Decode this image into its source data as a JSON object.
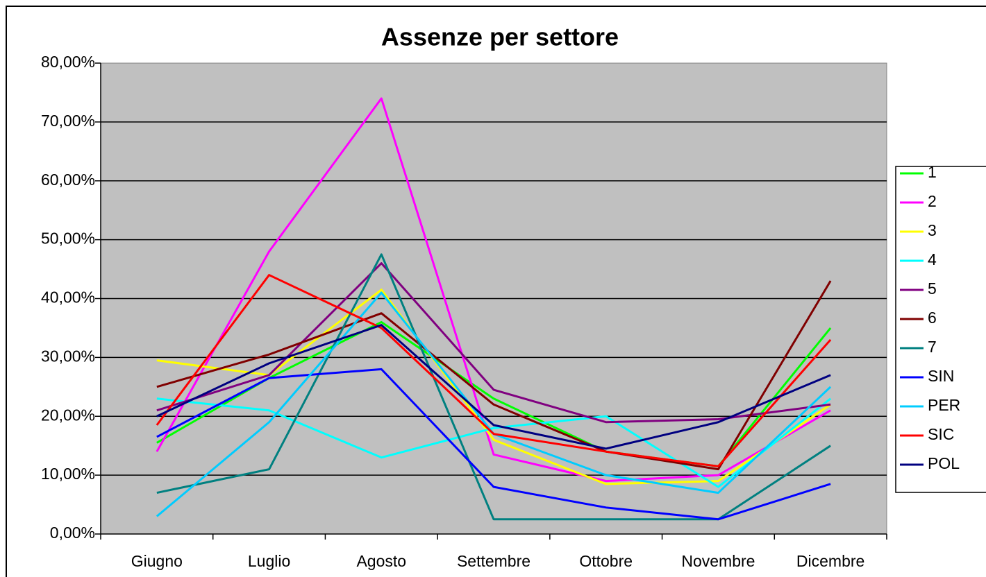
{
  "chart_data": {
    "type": "line",
    "title": "Assenze per settore",
    "categories": [
      "Giugno",
      "Luglio",
      "Agosto",
      "Settembre",
      "Ottobre",
      "Novembre",
      "Dicembre"
    ],
    "series": [
      {
        "name": "1",
        "color": "#00ff00",
        "values": [
          15.5,
          26.5,
          36,
          23,
          14,
          11.5,
          35
        ]
      },
      {
        "name": "2",
        "color": "#ff00ff",
        "values": [
          14,
          48,
          74,
          13.5,
          9,
          10,
          21
        ]
      },
      {
        "name": "3",
        "color": "#ffff00",
        "values": [
          29.5,
          27,
          41.5,
          16,
          8.5,
          9,
          22
        ]
      },
      {
        "name": "4",
        "color": "#00ffff",
        "values": [
          23,
          21,
          13,
          18,
          20,
          8,
          23
        ]
      },
      {
        "name": "5",
        "color": "#800080",
        "values": [
          21,
          27,
          46,
          24.5,
          19,
          19.5,
          22
        ]
      },
      {
        "name": "6",
        "color": "#800000",
        "values": [
          25,
          30.5,
          37.5,
          22,
          14,
          11,
          43
        ]
      },
      {
        "name": "7",
        "color": "#008080",
        "values": [
          7,
          11,
          47.5,
          2.5,
          2.5,
          2.5,
          15
        ]
      },
      {
        "name": "SIN",
        "color": "#0000ff",
        "values": [
          16.5,
          26.5,
          28,
          8,
          4.5,
          2.5,
          8.5
        ]
      },
      {
        "name": "PER",
        "color": "#00ccff",
        "values": [
          3,
          19,
          41,
          17,
          10,
          7,
          25
        ]
      },
      {
        "name": "SIC",
        "color": "#ff0000",
        "values": [
          18.5,
          44,
          35,
          17,
          14,
          11.5,
          33
        ]
      },
      {
        "name": "POL",
        "color": "#000080",
        "values": [
          20,
          29,
          35.5,
          18.5,
          14.5,
          19,
          27
        ]
      }
    ],
    "ylim": [
      0,
      80
    ],
    "yticks": [
      {
        "value": 0,
        "label": "0,00%"
      },
      {
        "value": 10,
        "label": "10,00%"
      },
      {
        "value": 20,
        "label": "20,00%"
      },
      {
        "value": 30,
        "label": "30,00%"
      },
      {
        "value": 40,
        "label": "40,00%"
      },
      {
        "value": 50,
        "label": "50,00%"
      },
      {
        "value": 60,
        "label": "60,00%"
      },
      {
        "value": 70,
        "label": "70,00%"
      },
      {
        "value": 80,
        "label": "80,00%"
      }
    ],
    "grid": true,
    "legend": "right",
    "plot_background": "#c0c0c0"
  }
}
